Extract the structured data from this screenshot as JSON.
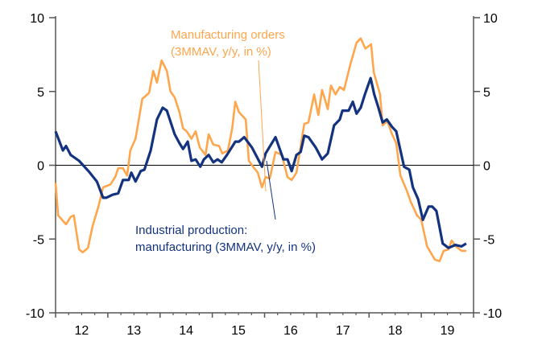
{
  "chart_data": {
    "type": "line",
    "title": "",
    "xlabel": "",
    "ylabel": "",
    "xlim": [
      12,
      20
    ],
    "ylim": [
      -10,
      10
    ],
    "y_right_axis": true,
    "grid": false,
    "zero_line": true,
    "x_tick_labels": [
      "12",
      "13",
      "14",
      "15",
      "16",
      "17",
      "18",
      "19"
    ],
    "y_tick_values": [
      10,
      5,
      0,
      -5,
      -10
    ],
    "y_tick_labels": [
      "10",
      "5",
      "0",
      "-5",
      "-10"
    ],
    "series": [
      {
        "name": "Manufacturing orders (3MMAV, y/y, in %)",
        "label_lines": [
          "Manufacturing orders",
          "(3MMAV, y/y, in %)"
        ],
        "color": "#FFA64D",
        "x": [
          12.0,
          12.05,
          12.2,
          12.29,
          12.35,
          12.45,
          12.52,
          12.62,
          12.71,
          12.82,
          12.91,
          13.05,
          13.14,
          13.2,
          13.29,
          13.37,
          13.43,
          13.53,
          13.66,
          13.79,
          13.87,
          13.94,
          14.03,
          14.13,
          14.2,
          14.28,
          14.37,
          14.44,
          14.51,
          14.6,
          14.68,
          14.76,
          14.87,
          14.93,
          15.02,
          15.13,
          15.19,
          15.3,
          15.38,
          15.44,
          15.51,
          15.64,
          15.7,
          15.78,
          15.87,
          15.95,
          16.02,
          16.1,
          16.21,
          16.33,
          16.44,
          16.52,
          16.61,
          16.76,
          16.84,
          16.95,
          17.03,
          17.1,
          17.21,
          17.27,
          17.36,
          17.44,
          17.52,
          17.64,
          17.76,
          17.84,
          17.93,
          18.04,
          18.09,
          18.21,
          18.26,
          18.35,
          18.44,
          18.52,
          18.6,
          18.72,
          18.8,
          18.92,
          19.0,
          19.11,
          19.26,
          19.35,
          19.43,
          19.52,
          19.58,
          19.66,
          19.77,
          19.86
        ],
        "y": [
          -1.2,
          -3.4,
          -4.0,
          -3.5,
          -3.4,
          -5.7,
          -5.9,
          -5.6,
          -4.1,
          -2.8,
          -1.5,
          -1.3,
          -0.8,
          -0.2,
          -0.2,
          -0.7,
          1.0,
          1.8,
          4.5,
          4.9,
          6.4,
          5.6,
          7.1,
          6.4,
          5.0,
          4.6,
          3.6,
          2.5,
          2.3,
          1.8,
          2.3,
          1.2,
          0.7,
          2.1,
          1.4,
          1.3,
          0.8,
          1.0,
          2.5,
          4.3,
          3.6,
          3.1,
          0.3,
          -0.1,
          -0.5,
          -1.5,
          -0.8,
          -0.9,
          0.9,
          0.7,
          -0.8,
          -1.0,
          -0.5,
          2.8,
          2.9,
          4.8,
          3.4,
          5.1,
          3.8,
          5.4,
          4.8,
          5.3,
          5.1,
          6.8,
          8.3,
          8.6,
          7.9,
          8.2,
          6.3,
          4.8,
          2.7,
          3.0,
          2.1,
          1.5,
          -0.7,
          -1.7,
          -2.5,
          -3.4,
          -3.7,
          -5.5,
          -6.4,
          -6.5,
          -5.8,
          -5.7,
          -5.1,
          -5.5,
          -5.8,
          -5.8
        ]
      },
      {
        "name": "Industrial production: manufacturing (3MMAV, y/y, in %)",
        "label_lines": [
          "Industrial production:",
          "manufacturing (3MMAV, y/y, in %)"
        ],
        "color": "#14337F",
        "x": [
          12.0,
          12.14,
          12.2,
          12.29,
          12.45,
          12.63,
          12.79,
          12.91,
          12.97,
          13.09,
          13.2,
          13.29,
          13.4,
          13.45,
          13.53,
          13.63,
          13.7,
          13.82,
          13.94,
          14.05,
          14.13,
          14.28,
          14.37,
          14.44,
          14.53,
          14.6,
          14.68,
          14.77,
          14.84,
          14.93,
          15.02,
          15.1,
          15.18,
          15.28,
          15.44,
          15.51,
          15.61,
          15.76,
          15.95,
          16.02,
          16.21,
          16.36,
          16.44,
          16.52,
          16.61,
          16.69,
          16.76,
          16.84,
          16.98,
          17.1,
          17.21,
          17.33,
          17.44,
          17.49,
          17.61,
          17.69,
          17.76,
          17.84,
          17.92,
          18.03,
          18.1,
          18.18,
          18.26,
          18.34,
          18.44,
          18.52,
          18.67,
          18.77,
          18.84,
          18.94,
          19.03,
          19.14,
          19.21,
          19.29,
          19.41,
          19.52,
          19.65,
          19.77,
          19.86
        ],
        "y": [
          2.3,
          1.0,
          1.3,
          0.7,
          0.3,
          -0.4,
          -1.1,
          -2.2,
          -2.2,
          -2.0,
          -1.9,
          -1.0,
          -1.0,
          -0.5,
          -1.1,
          -0.4,
          -0.3,
          1.0,
          3.1,
          3.9,
          3.7,
          2.1,
          1.5,
          1.1,
          1.6,
          0.3,
          0.4,
          -0.1,
          0.4,
          0.7,
          0.2,
          0.4,
          0.2,
          0.7,
          1.6,
          1.6,
          1.9,
          1.2,
          -0.1,
          0.8,
          1.9,
          0.4,
          0.4,
          -0.4,
          0.7,
          0.9,
          2.0,
          1.9,
          1.2,
          0.4,
          0.8,
          2.7,
          3.1,
          3.7,
          3.7,
          4.3,
          3.5,
          3.9,
          4.8,
          5.9,
          4.8,
          3.9,
          2.9,
          3.1,
          2.6,
          2.3,
          -0.1,
          -0.3,
          -1.5,
          -2.3,
          -3.7,
          -2.8,
          -2.8,
          -3.1,
          -5.3,
          -5.6,
          -5.4,
          -5.5,
          -5.3
        ]
      }
    ]
  }
}
